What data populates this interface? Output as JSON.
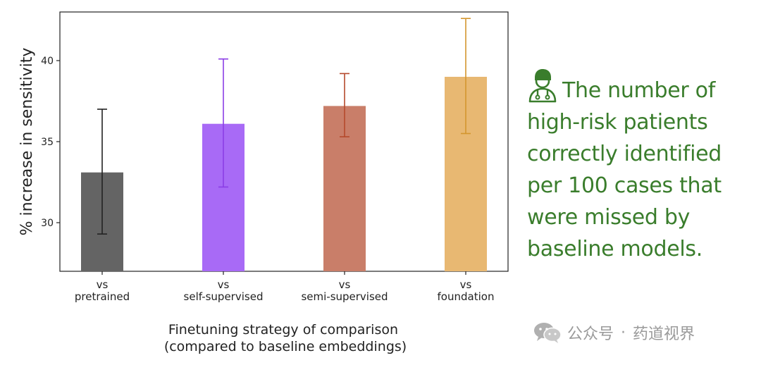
{
  "chart_data": {
    "type": "bar",
    "categories": [
      [
        "vs",
        "pretrained"
      ],
      [
        "vs",
        "self-supervised"
      ],
      [
        "vs",
        "semi-supervised"
      ],
      [
        "vs",
        "foundation"
      ]
    ],
    "values": [
      33.1,
      36.1,
      37.2,
      39.0
    ],
    "error_low": [
      29.3,
      32.2,
      35.3,
      35.5
    ],
    "error_high": [
      37.0,
      40.1,
      39.2,
      42.6
    ],
    "colors": [
      "#646464",
      "#a86af6",
      "#c97e69",
      "#e8b872"
    ],
    "error_colors": [
      "#222222",
      "#8b3ee6",
      "#b5492c",
      "#d3962e"
    ],
    "ylim": [
      27,
      43
    ],
    "yticks": [
      30,
      35,
      40
    ],
    "ylabel": "% increase in sensitivity",
    "xlabel_lines": [
      "Finetuning strategy of comparison",
      "(compared to baseline embeddings)"
    ],
    "grid": false,
    "legend": "none"
  },
  "note": {
    "lines": [
      "The number of",
      "high-risk patients",
      "correctly identified",
      "per 100 cases that",
      "were missed by",
      "baseline models."
    ],
    "color": "#3a7d2c",
    "icon": "doctor-icon"
  },
  "watermark": {
    "icon": "wechat-icon",
    "parts": [
      "公众号",
      "·",
      "药道视界"
    ]
  }
}
